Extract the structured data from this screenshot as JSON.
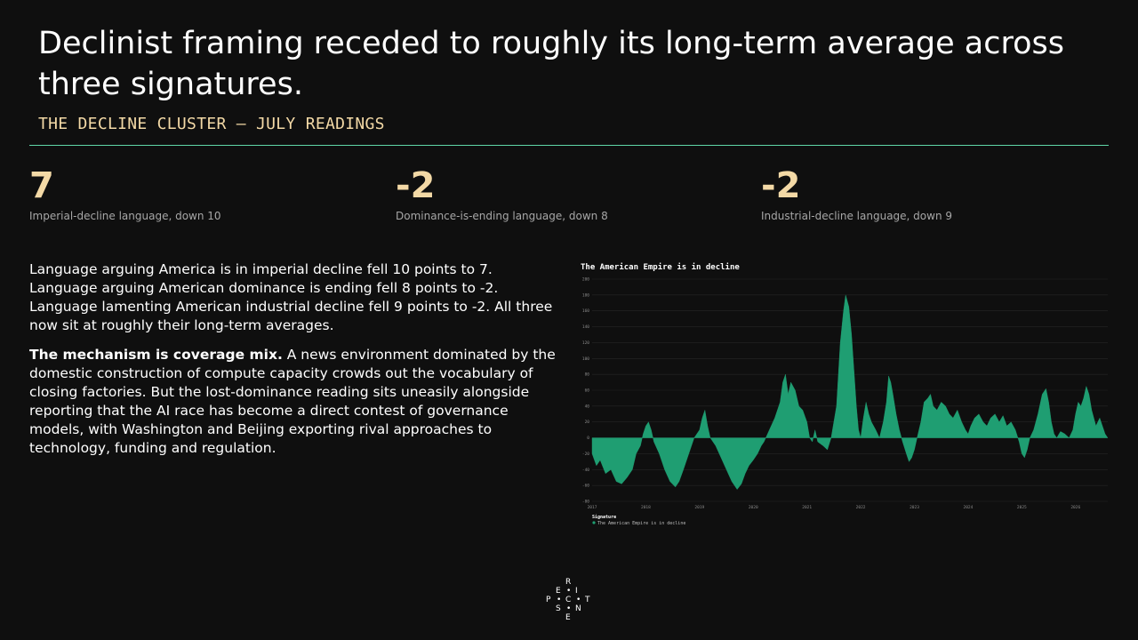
{
  "slide": {
    "title": "Declinist framing receded to roughly its long-term average across three signatures.",
    "subtitle": "THE DECLINE CLUSTER — JULY READINGS"
  },
  "stats": [
    {
      "value": "7",
      "label": "Imperial-decline language, down 10"
    },
    {
      "value": "-2",
      "label": "Dominance-is-ending language, down 8"
    },
    {
      "value": "-2",
      "label": "Industrial-decline language, down 9"
    }
  ],
  "body": {
    "para1": "Language arguing America is in imperial decline fell 10 points to 7. Language arguing American dominance is ending fell 8 points to -2. Language lamenting American industrial decline fell 9 points to -2. All three now sit at roughly their long-term averages.",
    "para2_lead": "The mechanism is coverage mix.",
    "para2_rest": " A news environment dominated by the domestic construction of compute capacity crowds out the vocabulary of closing factories. But the lost-dominance reading sits uneasily alongside reporting that the AI race has become a direct contest of governance models, with Washington and Beijing exporting rival approaches to technology, funding and regulation."
  },
  "logo": {
    "letters": [
      "R",
      "E",
      "I",
      "P",
      "C",
      "T",
      "S",
      "N",
      "E"
    ]
  },
  "chart_data": {
    "type": "area",
    "title": "The American Empire is in decline",
    "legend_title": "Signature",
    "legend_placement": "bottom-left",
    "series": [
      {
        "name": "The American Empire is in decline",
        "color": "#1f9e72"
      }
    ],
    "ylim": [
      -80,
      200
    ],
    "yticks": [
      -80,
      -60,
      -40,
      -20,
      0,
      20,
      40,
      60,
      80,
      100,
      120,
      140,
      160,
      180,
      200
    ],
    "xlim": [
      2017.0,
      2026.6
    ],
    "xticks": [
      "2017",
      "2018",
      "2019",
      "2020",
      "2021",
      "2022",
      "2023",
      "2024",
      "2025",
      "2026"
    ],
    "grid": true,
    "points": [
      [
        2017.0,
        -20
      ],
      [
        2017.08,
        -35
      ],
      [
        2017.15,
        -28
      ],
      [
        2017.25,
        -45
      ],
      [
        2017.35,
        -40
      ],
      [
        2017.45,
        -55
      ],
      [
        2017.55,
        -58
      ],
      [
        2017.65,
        -50
      ],
      [
        2017.75,
        -40
      ],
      [
        2017.82,
        -20
      ],
      [
        2017.9,
        -10
      ],
      [
        2017.95,
        5
      ],
      [
        2018.0,
        15
      ],
      [
        2018.05,
        20
      ],
      [
        2018.1,
        10
      ],
      [
        2018.15,
        -5
      ],
      [
        2018.25,
        -20
      ],
      [
        2018.35,
        -40
      ],
      [
        2018.45,
        -55
      ],
      [
        2018.55,
        -62
      ],
      [
        2018.62,
        -55
      ],
      [
        2018.7,
        -40
      ],
      [
        2018.8,
        -20
      ],
      [
        2018.9,
        0
      ],
      [
        2019.0,
        10
      ],
      [
        2019.05,
        25
      ],
      [
        2019.1,
        35
      ],
      [
        2019.15,
        15
      ],
      [
        2019.2,
        0
      ],
      [
        2019.3,
        -10
      ],
      [
        2019.4,
        -25
      ],
      [
        2019.5,
        -40
      ],
      [
        2019.6,
        -55
      ],
      [
        2019.7,
        -65
      ],
      [
        2019.78,
        -58
      ],
      [
        2019.85,
        -45
      ],
      [
        2019.92,
        -35
      ],
      [
        2020.0,
        -28
      ],
      [
        2020.08,
        -20
      ],
      [
        2020.15,
        -10
      ],
      [
        2020.2,
        -5
      ],
      [
        2020.3,
        10
      ],
      [
        2020.4,
        25
      ],
      [
        2020.5,
        45
      ],
      [
        2020.55,
        70
      ],
      [
        2020.6,
        80
      ],
      [
        2020.65,
        55
      ],
      [
        2020.7,
        70
      ],
      [
        2020.78,
        60
      ],
      [
        2020.85,
        40
      ],
      [
        2020.92,
        35
      ],
      [
        2021.0,
        20
      ],
      [
        2021.05,
        0
      ],
      [
        2021.1,
        -5
      ],
      [
        2021.15,
        10
      ],
      [
        2021.2,
        -5
      ],
      [
        2021.3,
        -10
      ],
      [
        2021.38,
        -15
      ],
      [
        2021.45,
        0
      ],
      [
        2021.55,
        40
      ],
      [
        2021.62,
        120
      ],
      [
        2021.68,
        160
      ],
      [
        2021.72,
        180
      ],
      [
        2021.78,
        165
      ],
      [
        2021.83,
        130
      ],
      [
        2021.88,
        80
      ],
      [
        2021.92,
        40
      ],
      [
        2021.96,
        10
      ],
      [
        2022.0,
        0
      ],
      [
        2022.05,
        25
      ],
      [
        2022.1,
        45
      ],
      [
        2022.15,
        30
      ],
      [
        2022.2,
        20
      ],
      [
        2022.28,
        10
      ],
      [
        2022.35,
        0
      ],
      [
        2022.42,
        20
      ],
      [
        2022.48,
        45
      ],
      [
        2022.52,
        78
      ],
      [
        2022.56,
        70
      ],
      [
        2022.6,
        55
      ],
      [
        2022.66,
        30
      ],
      [
        2022.72,
        10
      ],
      [
        2022.78,
        -5
      ],
      [
        2022.85,
        -20
      ],
      [
        2022.9,
        -30
      ],
      [
        2022.95,
        -25
      ],
      [
        2023.0,
        -15
      ],
      [
        2023.05,
        0
      ],
      [
        2023.12,
        20
      ],
      [
        2023.18,
        45
      ],
      [
        2023.25,
        50
      ],
      [
        2023.3,
        55
      ],
      [
        2023.35,
        40
      ],
      [
        2023.42,
        35
      ],
      [
        2023.5,
        45
      ],
      [
        2023.58,
        40
      ],
      [
        2023.65,
        30
      ],
      [
        2023.72,
        25
      ],
      [
        2023.8,
        35
      ],
      [
        2023.88,
        20
      ],
      [
        2023.95,
        10
      ],
      [
        2024.0,
        5
      ],
      [
        2024.05,
        15
      ],
      [
        2024.12,
        25
      ],
      [
        2024.2,
        30
      ],
      [
        2024.28,
        20
      ],
      [
        2024.35,
        15
      ],
      [
        2024.42,
        25
      ],
      [
        2024.5,
        30
      ],
      [
        2024.58,
        20
      ],
      [
        2024.65,
        28
      ],
      [
        2024.72,
        15
      ],
      [
        2024.8,
        20
      ],
      [
        2024.88,
        10
      ],
      [
        2024.95,
        -5
      ],
      [
        2025.0,
        -20
      ],
      [
        2025.05,
        -25
      ],
      [
        2025.1,
        -15
      ],
      [
        2025.15,
        0
      ],
      [
        2025.22,
        10
      ],
      [
        2025.3,
        30
      ],
      [
        2025.38,
        55
      ],
      [
        2025.45,
        62
      ],
      [
        2025.5,
        45
      ],
      [
        2025.55,
        20
      ],
      [
        2025.6,
        5
      ],
      [
        2025.65,
        0
      ],
      [
        2025.72,
        8
      ],
      [
        2025.8,
        5
      ],
      [
        2025.88,
        0
      ],
      [
        2025.95,
        10
      ],
      [
        2026.0,
        30
      ],
      [
        2026.05,
        45
      ],
      [
        2026.1,
        40
      ],
      [
        2026.15,
        50
      ],
      [
        2026.2,
        65
      ],
      [
        2026.25,
        55
      ],
      [
        2026.3,
        35
      ],
      [
        2026.38,
        15
      ],
      [
        2026.45,
        25
      ],
      [
        2026.5,
        15
      ],
      [
        2026.55,
        5
      ],
      [
        2026.6,
        0
      ]
    ]
  }
}
